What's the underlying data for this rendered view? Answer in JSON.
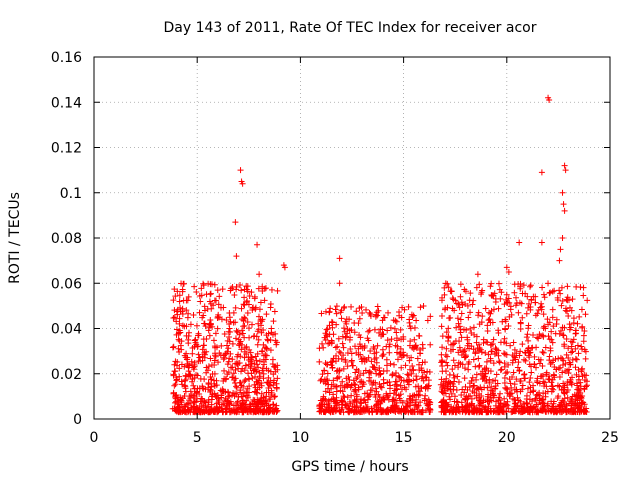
{
  "chart_data": {
    "type": "scatter",
    "title": "Day 143 of 2011, Rate Of TEC Index for receiver acor",
    "xlabel": "GPS time / hours",
    "ylabel": "ROTI / TECUs",
    "xlim": [
      0,
      25
    ],
    "ylim": [
      0,
      0.16
    ],
    "x_ticks": [
      0,
      5,
      10,
      15,
      20,
      25
    ],
    "x_tick_labels": [
      "0",
      "5",
      "10",
      "15",
      "20",
      "25"
    ],
    "y_ticks": [
      0,
      0.02,
      0.04,
      0.06,
      0.08,
      0.1,
      0.12,
      0.14,
      0.16
    ],
    "y_tick_labels": [
      "0",
      "0.02",
      "0.04",
      "0.06",
      "0.08",
      "0.1",
      "0.12",
      "0.14",
      "0.16"
    ],
    "grid": true,
    "marker": "+",
    "series_color": "#ff0000",
    "clusters": [
      {
        "x_range": [
          3.8,
          8.9
        ],
        "y_range": [
          0.003,
          0.06
        ],
        "count": 900
      },
      {
        "x_range": [
          10.9,
          16.3
        ],
        "y_range": [
          0.003,
          0.05
        ],
        "count": 700
      },
      {
        "x_range": [
          16.8,
          23.9
        ],
        "y_range": [
          0.003,
          0.06
        ],
        "count": 1100
      }
    ],
    "points": [
      [
        7.1,
        0.11
      ],
      [
        7.15,
        0.105
      ],
      [
        7.2,
        0.104
      ],
      [
        6.85,
        0.087
      ],
      [
        7.9,
        0.077
      ],
      [
        6.9,
        0.072
      ],
      [
        9.2,
        0.068
      ],
      [
        9.25,
        0.067
      ],
      [
        11.9,
        0.071
      ],
      [
        22.0,
        0.142
      ],
      [
        22.05,
        0.141
      ],
      [
        21.7,
        0.109
      ],
      [
        22.8,
        0.112
      ],
      [
        22.85,
        0.11
      ],
      [
        22.7,
        0.1
      ],
      [
        22.75,
        0.095
      ],
      [
        22.8,
        0.092
      ],
      [
        22.7,
        0.08
      ],
      [
        20.6,
        0.078
      ],
      [
        21.7,
        0.078
      ],
      [
        22.6,
        0.075
      ],
      [
        22.55,
        0.07
      ],
      [
        18.6,
        0.064
      ],
      [
        8.0,
        0.064
      ],
      [
        11.9,
        0.06
      ],
      [
        20.0,
        0.067
      ],
      [
        20.1,
        0.065
      ],
      [
        21.8,
        0.055
      ]
    ]
  }
}
